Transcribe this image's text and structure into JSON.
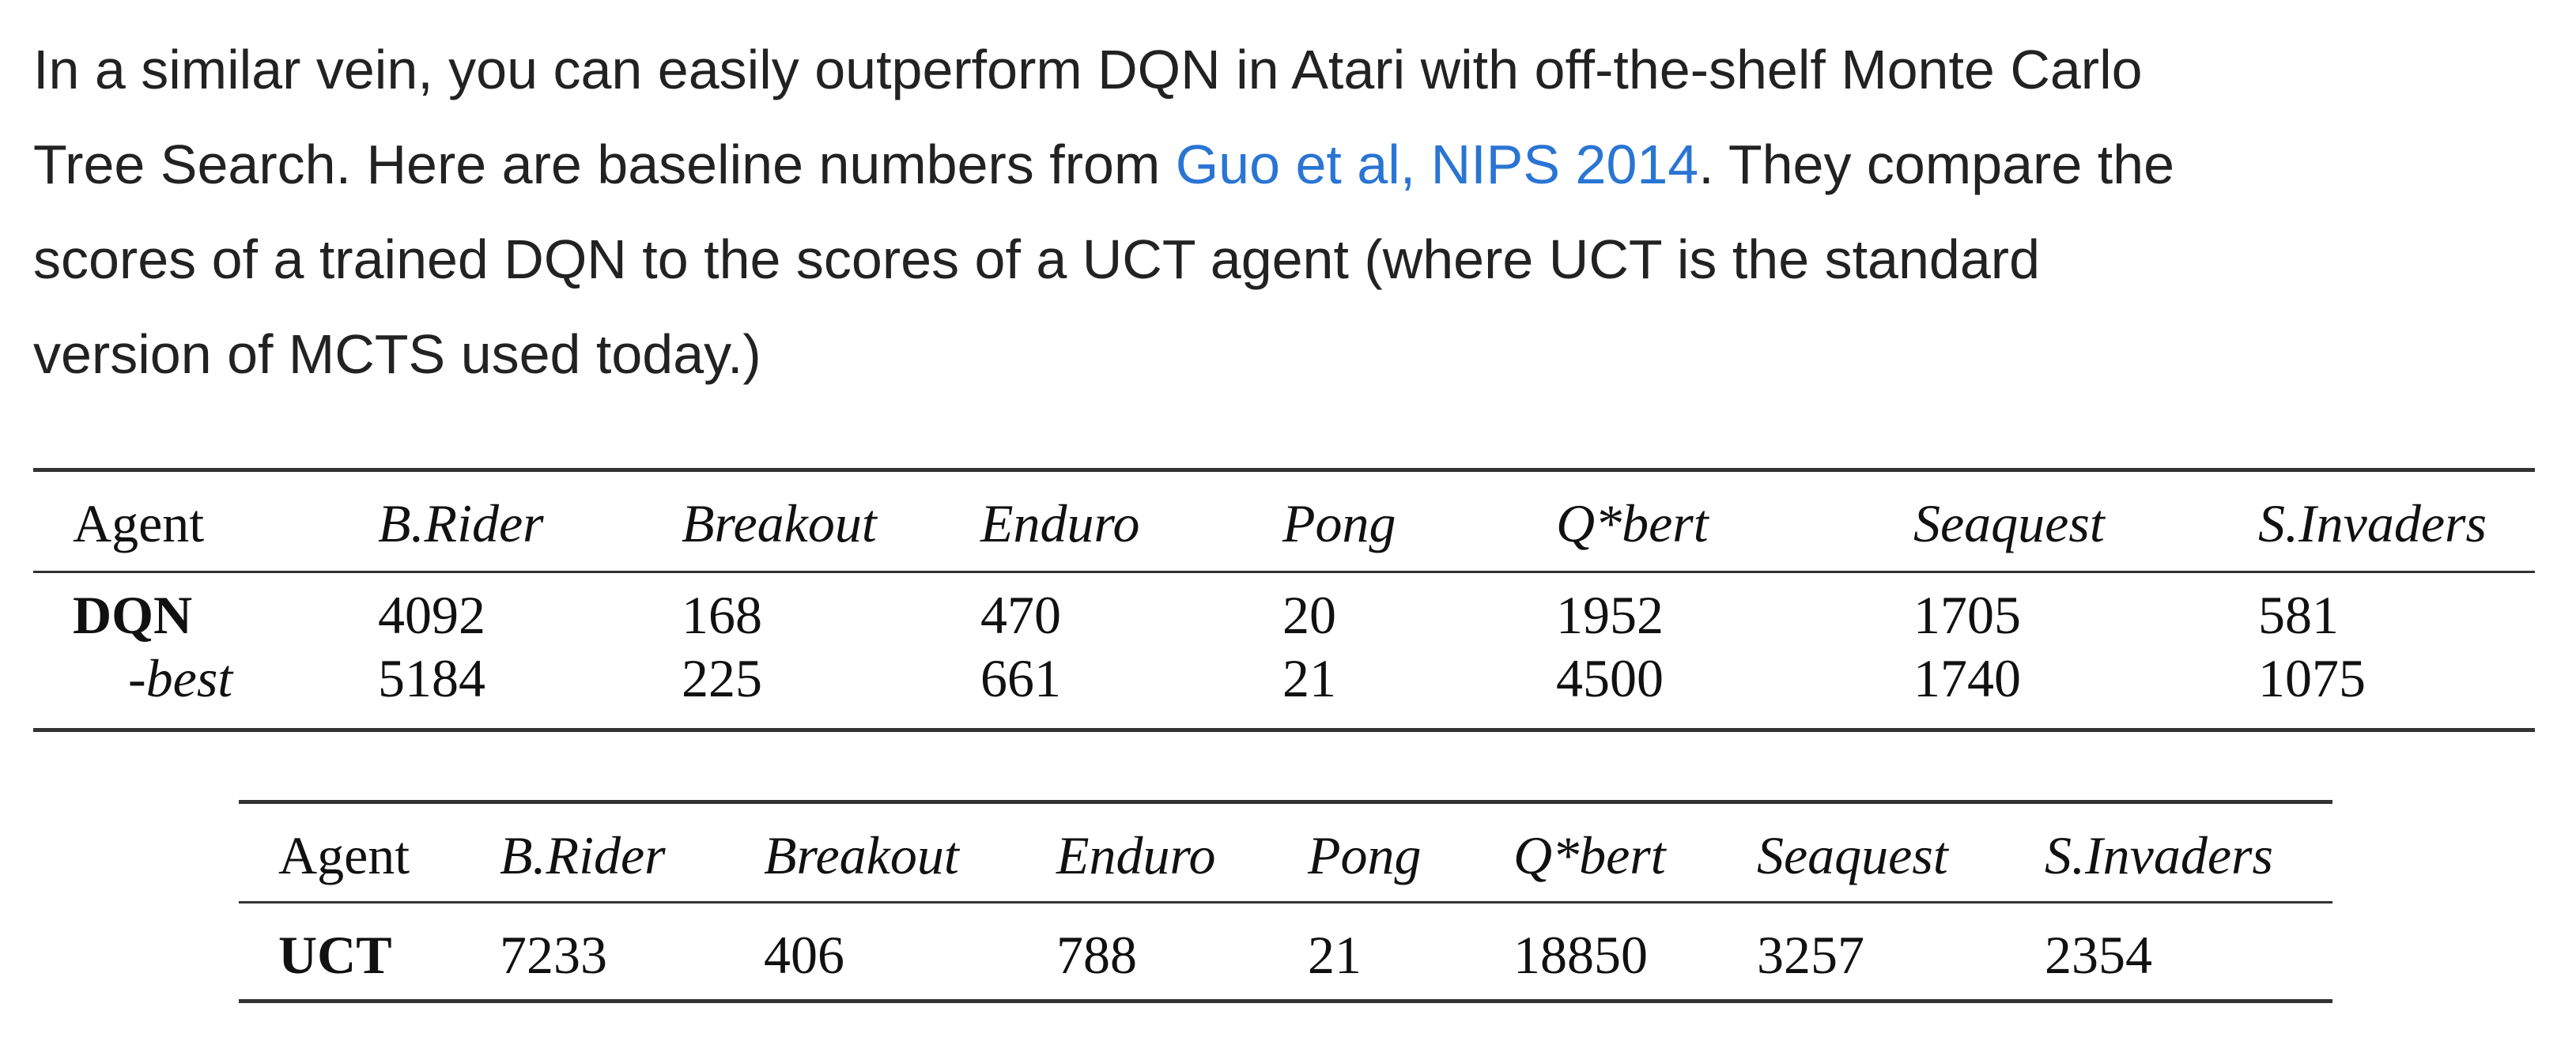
{
  "paragraph": {
    "line1": "In a similar vein, you can easily outperform DQN in Atari with off-the-shelf Monte Carlo",
    "line2_before": "Tree Search. Here are baseline numbers from ",
    "link_text": "Guo et al, NIPS 2014",
    "line2_after": ". They compare the",
    "line3": "scores of a trained DQN to the scores of a UCT agent (where UCT is the standard",
    "line4": "version of MCTS used today.)",
    "link_color": "#2a75d3"
  },
  "table_dqn": {
    "headers": [
      "Agent",
      "B.Rider",
      "Breakout",
      "Enduro",
      "Pong",
      "Q*bert",
      "Seaquest",
      "S.Invaders"
    ],
    "rows": [
      [
        "DQN",
        "4092",
        "168",
        "470",
        "20",
        "1952",
        "1705",
        "581"
      ],
      [
        "-best",
        "5184",
        "225",
        "661",
        "21",
        "4500",
        "1740",
        "1075"
      ]
    ]
  },
  "table_uct": {
    "headers": [
      "Agent",
      "B.Rider",
      "Breakout",
      "Enduro",
      "Pong",
      "Q*bert",
      "Seaquest",
      "S.Invaders"
    ],
    "rows": [
      [
        "UCT",
        "7233",
        "406",
        "788",
        "21",
        "18850",
        "3257",
        "2354"
      ]
    ]
  }
}
